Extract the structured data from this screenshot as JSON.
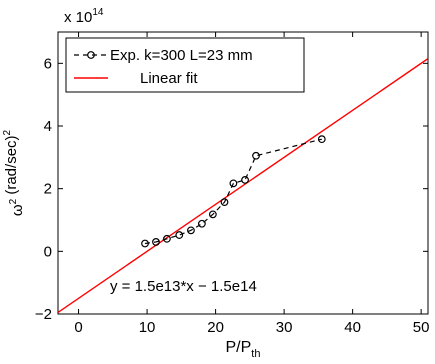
{
  "chart_data": {
    "type": "scatter",
    "xlabel": "P/P_th",
    "ylabel": "ω^2 (rad/sec)^2",
    "y_multiplier_label": "x 10^14",
    "xlim": [
      -3,
      51
    ],
    "ylim": [
      -200000000000000.0,
      700000000000000.0
    ],
    "x_ticks": [
      0,
      10,
      20,
      30,
      40,
      50
    ],
    "y_ticks": [
      -200000000000000.0,
      0,
      200000000000000.0,
      400000000000000.0,
      600000000000000.0
    ],
    "x_tick_labels": [
      "0",
      "10",
      "20",
      "30",
      "40",
      "50"
    ],
    "y_tick_labels": [
      "−2",
      "0",
      "2",
      "4",
      "6"
    ],
    "grid": false,
    "legend_position": "top-left",
    "annotation": "y = 1.5e13*x − 1.5e14",
    "series": [
      {
        "name": "Exp. k=300 L=23 mm",
        "style": "dashed-circles",
        "color": "#000000",
        "x": [
          9.7,
          11.3,
          12.9,
          14.7,
          16.4,
          18.0,
          19.6,
          21.3,
          22.6,
          24.3,
          25.9,
          35.5
        ],
        "y": [
          25000000000000.0,
          30000000000000.0,
          40000000000000.0,
          52000000000000.0,
          67000000000000.0,
          88000000000000.0,
          118000000000000.0,
          157000000000000.0,
          217000000000000.0,
          228000000000000.0,
          305000000000000.0,
          358000000000000.0
        ]
      },
      {
        "name": "Linear fit",
        "style": "line",
        "color": "#ff0000",
        "slope": 15000000000000.0,
        "intercept": -150000000000000.0
      }
    ]
  }
}
